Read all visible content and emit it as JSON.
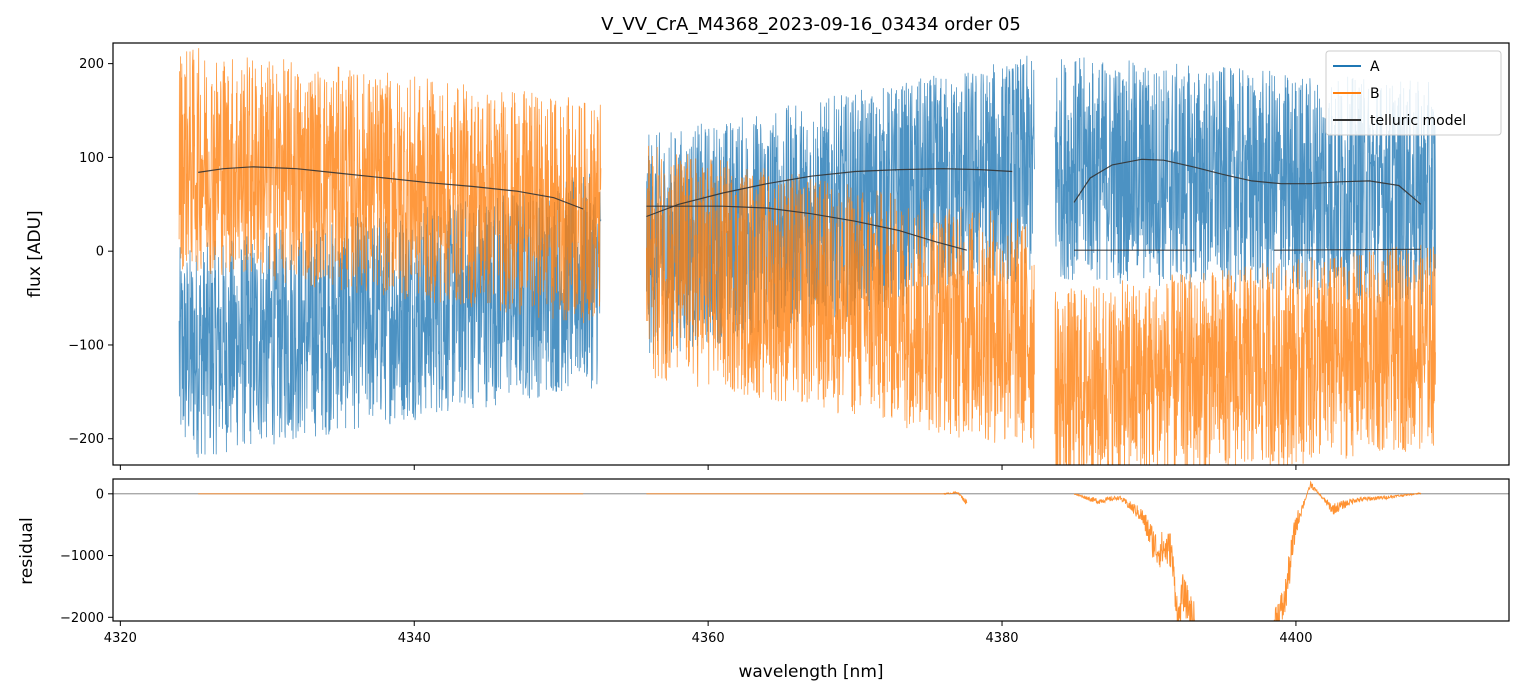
{
  "chart_data": [
    {
      "type": "line",
      "title": "V_VV_CrA_M4368_2023-09-16_03434  order 05",
      "xlabel": "",
      "ylabel": "flux [ADU]",
      "xlim": [
        4319.5,
        4414.5
      ],
      "ylim": [
        -228,
        222
      ],
      "yticks": [
        -200,
        -100,
        0,
        100,
        200
      ],
      "ytick_labels": [
        "−200",
        "−100",
        "0",
        "100",
        "200"
      ],
      "xticks": [
        4320,
        4340,
        4360,
        4380,
        4400
      ],
      "legend": {
        "placement": "top-right",
        "entries": [
          {
            "label": "A",
            "color": "#1f77b4"
          },
          {
            "label": "B",
            "color": "#ff7f0e"
          },
          {
            "label": "telluric model",
            "color": "#333333"
          }
        ]
      },
      "series": [
        {
          "name": "A",
          "color": "#1f77b4",
          "kind": "noise",
          "segments": [
            {
              "x0": 4324.0,
              "x1": 4352.7,
              "base_start": -110,
              "base_end": -30,
              "amplitude": 115
            },
            {
              "x0": 4355.8,
              "x1": 4382.2,
              "base_start": 5,
              "base_end": 90,
              "amplitude": 120
            },
            {
              "x0": 4383.6,
              "x1": 4409.5,
              "base_start": 90,
              "base_end": 60,
              "amplitude": 120
            }
          ]
        },
        {
          "name": "B",
          "color": "#ff7f0e",
          "kind": "noise",
          "segments": [
            {
              "x0": 4324.0,
              "x1": 4352.7,
              "base_start": 100,
              "base_end": 40,
              "amplitude": 120
            },
            {
              "x0": 4355.8,
              "x1": 4382.2,
              "base_start": -10,
              "base_end": -90,
              "amplitude": 125
            },
            {
              "x0": 4383.6,
              "x1": 4409.5,
              "base_start": -150,
              "base_end": -100,
              "amplitude": 110
            }
          ]
        },
        {
          "name": "telluric model",
          "color": "#333333",
          "kind": "line",
          "segments": [
            {
              "x": [
                4325.3,
                4327,
                4329,
                4332,
                4335,
                4338,
                4341,
                4344,
                4347,
                4349.5,
                4351.5
              ],
              "y": [
                84,
                88,
                90,
                88,
                83,
                78,
                73,
                69,
                64,
                57,
                45
              ]
            },
            {
              "x": [
                4355.8,
                4358,
                4361,
                4364,
                4367,
                4370,
                4373,
                4376,
                4378.5,
                4380.7
              ],
              "y": [
                37,
                50,
                62,
                72,
                80,
                85,
                87,
                88,
                87,
                85
              ]
            },
            {
              "x": [
                4355.8,
                4358,
                4361,
                4364,
                4367,
                4370,
                4373,
                4375.5,
                4377.6
              ],
              "y": [
                48,
                48,
                48,
                46,
                40,
                32,
                22,
                10,
                1
              ]
            },
            {
              "x": [
                4384.9,
                4386,
                4387.5,
                4389.5,
                4391,
                4393,
                4395,
                4397,
                4399,
                4401,
                4403,
                4405,
                4407,
                4408.5
              ],
              "y": [
                52,
                78,
                92,
                98,
                97,
                90,
                82,
                75,
                72,
                72,
                74,
                75,
                70,
                50
              ]
            },
            {
              "x": [
                4384.9,
                4393.1
              ],
              "y": [
                1,
                1
              ]
            },
            {
              "x": [
                4398.5,
                4408.5
              ],
              "y": [
                1,
                2
              ]
            }
          ]
        }
      ]
    },
    {
      "type": "line",
      "title": "",
      "xlabel": "wavelength [nm]",
      "ylabel": "residual",
      "xlim": [
        4319.5,
        4414.5
      ],
      "ylim": [
        -2060,
        240
      ],
      "yticks": [
        -2000,
        -1000,
        0
      ],
      "ytick_labels": [
        "−2000",
        "−1000",
        "0"
      ],
      "xticks": [
        4320,
        4340,
        4360,
        4380,
        4400
      ],
      "xtick_labels": [
        "4320",
        "4340",
        "4360",
        "4380",
        "4400"
      ],
      "reference_line": 0,
      "series": [
        {
          "name": "B residual",
          "color": "#ff7f0e",
          "segments": [
            {
              "x": [
                4325.3,
                4351.5
              ],
              "y": [
                0,
                0
              ]
            },
            {
              "x": [
                4355.8,
                4376,
                4377.0,
                4377.6
              ],
              "y": [
                0,
                0,
                20,
                -150
              ]
            },
            {
              "x": [
                4384.9,
                4386.5,
                4388,
                4389.5,
                4390.5,
                4391.5,
                4392.0,
                4392.3,
                4393.1
              ],
              "y": [
                0,
                -120,
                -60,
                -350,
                -900,
                -900,
                -2060,
                -1600,
                -2060
              ]
            },
            {
              "x": [
                4398.5,
                4399.2,
                4400.0,
                4401.0,
                4402.5,
                4404,
                4406,
                4408.5
              ],
              "y": [
                -2060,
                -1800,
                -500,
                150,
                -250,
                -100,
                -60,
                10
              ]
            }
          ]
        }
      ]
    }
  ]
}
